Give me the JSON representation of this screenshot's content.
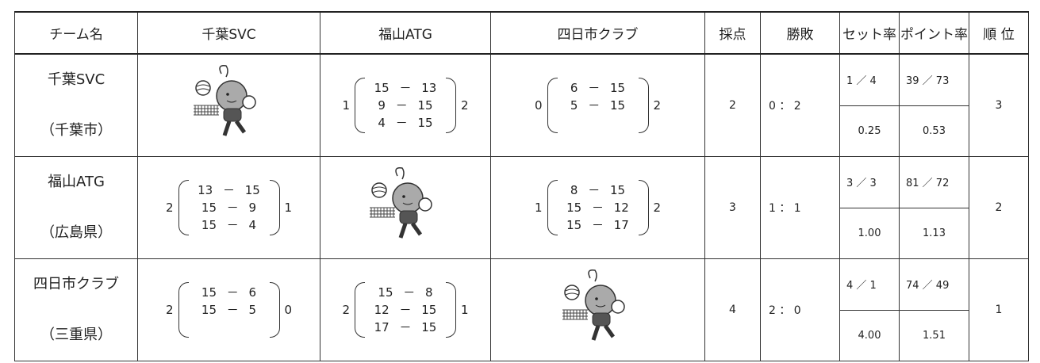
{
  "header": [
    "チーム名",
    "千葉SVC",
    "福山ATG",
    "四日市クラブ",
    "採点",
    "勝敗",
    "セット率",
    "ポイント率",
    "順 位"
  ],
  "rows": [
    {
      "team": "千葉SVC",
      "region": "（千葉市）",
      "cells": [
        null,
        {
          "left": 1,
          "sets": [
            "15 － 13",
            "9 － 15",
            "4 － 15"
          ],
          "right": 2
        },
        {
          "left": 0,
          "sets": [
            "6 － 15",
            "5 － 15"
          ],
          "right": 2
        }
      ],
      "points": 2,
      "record": "0 ： 2",
      "set_ratio": {
        "fraction": "1 ／ 4",
        "value": "0.25"
      },
      "point_ratio": {
        "fraction": "39 ／ 73",
        "value": "0.53"
      },
      "rank": 3
    },
    {
      "team": "福山ATG",
      "region": "（広島県）",
      "cells": [
        {
          "left": 2,
          "sets": [
            "13 － 15",
            "15 － 9",
            "15 － 4"
          ],
          "right": 1
        },
        null,
        {
          "left": 1,
          "sets": [
            "8 － 15",
            "15 － 12",
            "15 － 17"
          ],
          "right": 2
        }
      ],
      "points": 3,
      "record": "1 ： 1",
      "set_ratio": {
        "fraction": "3 ／ 3",
        "value": "1.00"
      },
      "point_ratio": {
        "fraction": "81 ／ 72",
        "value": "1.13"
      },
      "rank": 2
    },
    {
      "team": "四日市クラブ",
      "region": "（三重県）",
      "cells": [
        {
          "left": 2,
          "sets": [
            "15 － 6",
            "15 － 5"
          ],
          "right": 0
        },
        {
          "left": 2,
          "sets": [
            "15 － 8",
            "12 － 15",
            "17 － 15"
          ],
          "right": 1
        },
        null
      ],
      "points": 4,
      "record": "2 ： 0",
      "set_ratio": {
        "fraction": "4 ／ 1",
        "value": "4.00"
      },
      "point_ratio": {
        "fraction": "74 ／ 49",
        "value": "1.51"
      },
      "rank": 1
    }
  ]
}
